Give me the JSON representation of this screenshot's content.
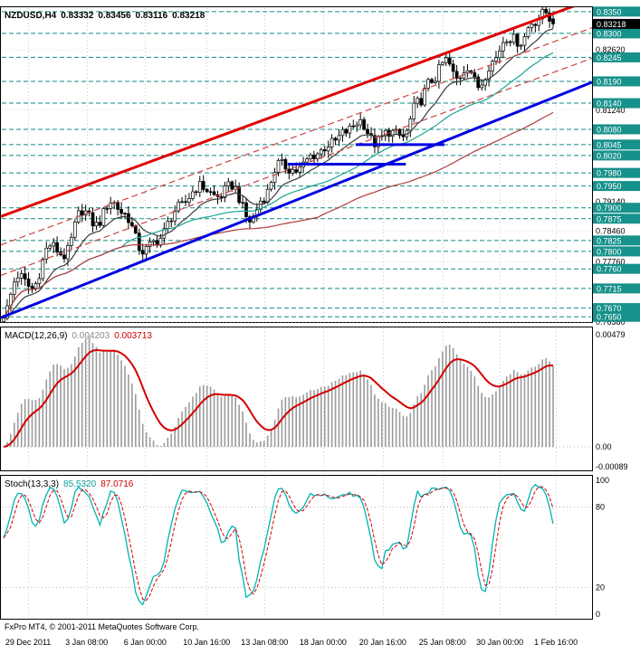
{
  "header": {
    "symbol_timeframe": "NZDUSD,H4",
    "open": "0.83332",
    "high": "0.83456",
    "low": "0.83116",
    "close": "0.83218"
  },
  "footer": {
    "credit": "FxPro MT4, © 2001-2011 MetaQuotes Software Corp."
  },
  "colors": {
    "level_box": "#17918b",
    "level_line": "#0e8c82",
    "grid": "#c9c9c9",
    "up_candle": "#ffffff",
    "down_candle": "#000000",
    "current_price_box": "#000000"
  },
  "chart_data": [
    {
      "type": "candlestick",
      "symbol": "NZDUSD",
      "timeframe": "H4",
      "current": {
        "open": 0.83332,
        "high": 0.83456,
        "low": 0.83116,
        "close": 0.83218
      },
      "current_price_label": "0.83218",
      "y_range": [
        0.7638,
        0.836
      ],
      "num_candles": 155,
      "price_anchors": [
        [
          0,
          0.7655
        ],
        [
          4,
          0.7745
        ],
        [
          8,
          0.7715
        ],
        [
          13,
          0.7815
        ],
        [
          17,
          0.779
        ],
        [
          22,
          0.7895
        ],
        [
          26,
          0.786
        ],
        [
          30,
          0.7915
        ],
        [
          34,
          0.7885
        ],
        [
          39,
          0.78
        ],
        [
          43,
          0.7825
        ],
        [
          49,
          0.79
        ],
        [
          55,
          0.795
        ],
        [
          60,
          0.7925
        ],
        [
          64,
          0.7952
        ],
        [
          69,
          0.787
        ],
        [
          73,
          0.7925
        ],
        [
          77,
          0.8
        ],
        [
          82,
          0.7985
        ],
        [
          87,
          0.8022
        ],
        [
          92,
          0.8048
        ],
        [
          96,
          0.8075
        ],
        [
          100,
          0.81
        ],
        [
          104,
          0.8048
        ],
        [
          108,
          0.8075
        ],
        [
          112,
          0.8062
        ],
        [
          116,
          0.814
        ],
        [
          120,
          0.8192
        ],
        [
          124,
          0.8238
        ],
        [
          127,
          0.8195
        ],
        [
          130,
          0.8225
        ],
        [
          133,
          0.8178
        ],
        [
          137,
          0.8235
        ],
        [
          141,
          0.8292
        ],
        [
          145,
          0.828
        ],
        [
          148,
          0.8325
        ],
        [
          152,
          0.8348
        ],
        [
          154,
          0.8322
        ]
      ],
      "support_resistance_levels": [
        0.835,
        0.83,
        0.8245,
        0.819,
        0.814,
        0.808,
        0.8045,
        0.802,
        0.798,
        0.795,
        0.79,
        0.7875,
        0.7825,
        0.78,
        0.776,
        0.7715,
        0.767,
        0.765
      ],
      "axis_labels": [
        "0.82620",
        "0.81240",
        "0.79140",
        "0.78460",
        "0.77760",
        "0.76380"
      ],
      "x_axis_labels": [
        "29 Dec 2011",
        "3 Jan 08:00",
        "6 Jan 00:00",
        "10 Jan 16:00",
        "13 Jan 08:00",
        "18 Jan 00:00",
        "20 Jan 16:00",
        "25 Jan 08:00",
        "30 Jan 00:00",
        "1 Feb 16:00"
      ],
      "trendlines": [
        {
          "name": "channel-upper-solid-red",
          "p_start": 0.788,
          "p_end": 0.8378,
          "color": "#e00000",
          "width": 3,
          "dash": null
        },
        {
          "name": "channel-mid-dashed-red",
          "p_start": 0.7815,
          "p_end": 0.8313,
          "color": "#cc4444",
          "width": 1.2,
          "dash": "7,4"
        },
        {
          "name": "channel-lower-dashed-red",
          "p_start": 0.7745,
          "p_end": 0.8243,
          "color": "#cc4444",
          "width": 1.2,
          "dash": "7,4"
        },
        {
          "name": "support-solid-blue",
          "p_start": 0.7648,
          "p_end": 0.8188,
          "color": "#0000e0",
          "width": 3,
          "dash": null
        }
      ],
      "horizontal_segments": [
        {
          "price": 0.8,
          "x1": 0.485,
          "x2": 0.685,
          "color": "#0000e0",
          "width": 3
        },
        {
          "price": 0.8045,
          "x1": 0.6,
          "x2": 0.75,
          "color": "#0000e0",
          "width": 3
        }
      ],
      "moving_averages": [
        {
          "period": 13,
          "method": "ema",
          "color": "#3a3a3a"
        },
        {
          "period": 34,
          "method": "sma",
          "color": "#1ba397"
        },
        {
          "period": 89,
          "method": "sma",
          "color": "#b23b3b"
        }
      ]
    },
    {
      "type": "macd",
      "label": "MACD(12,26,9)",
      "value_main": "0.004203",
      "value_signal": "0.003713",
      "params": {
        "fast": 12,
        "slow": 26,
        "signal": 9
      },
      "axis_labels": {
        "top": "0.00479",
        "zero": "0.00",
        "bottom": "-0.00089"
      },
      "colors": {
        "histogram": "#9b9b9b",
        "signal": "#d40000"
      }
    },
    {
      "type": "stochastic",
      "label": "Stoch(13,3,3)",
      "value_main": "85.5320",
      "value_signal": "87.0716",
      "params": {
        "k": 13,
        "d": 3,
        "slowing": 3
      },
      "axis_labels": [
        "100",
        "80",
        "20",
        "0"
      ],
      "gridlines": [
        80,
        20
      ],
      "colors": {
        "main": "#00b3b3",
        "signal": "#d40000"
      }
    }
  ]
}
